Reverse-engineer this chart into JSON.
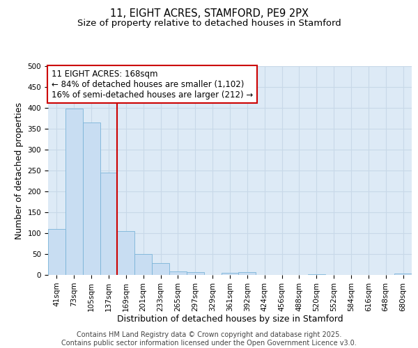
{
  "title": "11, EIGHT ACRES, STAMFORD, PE9 2PX",
  "subtitle": "Size of property relative to detached houses in Stamford",
  "xlabel": "Distribution of detached houses by size in Stamford",
  "ylabel": "Number of detached properties",
  "categories": [
    "41sqm",
    "73sqm",
    "105sqm",
    "137sqm",
    "169sqm",
    "201sqm",
    "233sqm",
    "265sqm",
    "297sqm",
    "329sqm",
    "361sqm",
    "392sqm",
    "424sqm",
    "456sqm",
    "488sqm",
    "520sqm",
    "552sqm",
    "584sqm",
    "616sqm",
    "648sqm",
    "680sqm"
  ],
  "values": [
    110,
    398,
    365,
    245,
    105,
    50,
    28,
    8,
    7,
    0,
    5,
    7,
    0,
    0,
    0,
    2,
    0,
    0,
    0,
    0,
    3
  ],
  "bar_color": "#c8ddf2",
  "bar_edge_color": "#7ab4d8",
  "vline_color": "#cc0000",
  "annotation_line1": "11 EIGHT ACRES: 168sqm",
  "annotation_line2": "← 84% of detached houses are smaller (1,102)",
  "annotation_line3": "16% of semi-detached houses are larger (212) →",
  "annotation_box_color": "#cc0000",
  "ylim": [
    0,
    500
  ],
  "yticks": [
    0,
    50,
    100,
    150,
    200,
    250,
    300,
    350,
    400,
    450,
    500
  ],
  "grid_color": "#c8d8e8",
  "background_color": "#ddeaf6",
  "footer_text": "Contains HM Land Registry data © Crown copyright and database right 2025.\nContains public sector information licensed under the Open Government Licence v3.0.",
  "title_fontsize": 10.5,
  "subtitle_fontsize": 9.5,
  "axis_label_fontsize": 9,
  "tick_fontsize": 7.5,
  "annotation_fontsize": 8.5,
  "footer_fontsize": 7
}
